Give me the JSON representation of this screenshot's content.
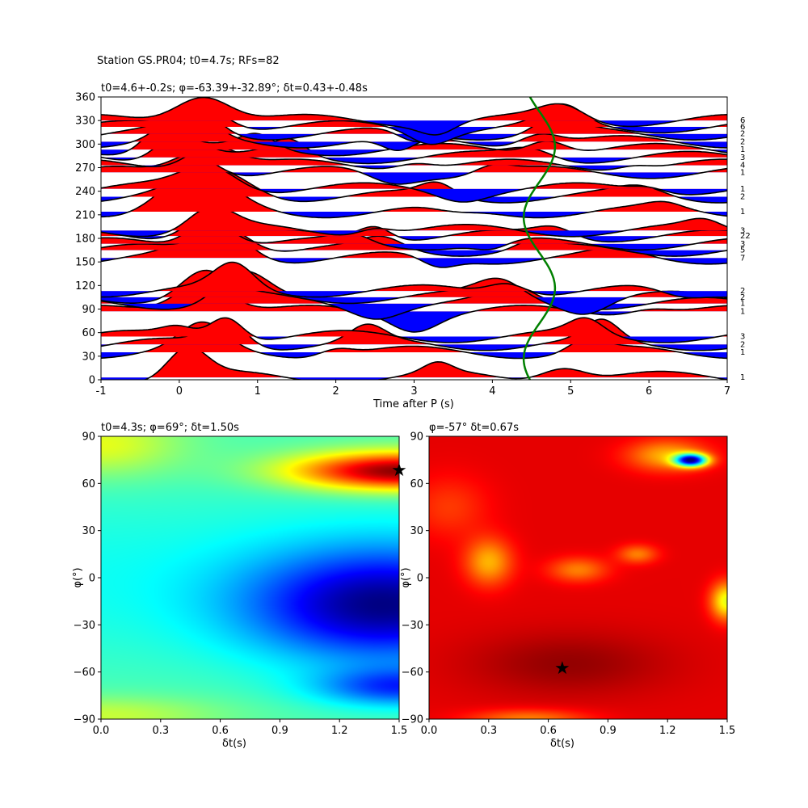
{
  "suptitle": "Station GS.PR04; t0=4.7s; RFs=82",
  "chart_data": [
    {
      "type": "line",
      "title": "t0=4.6+-0.2s; φ=-63.39+-32.89°; δt=0.43+-0.48s",
      "xlabel": "Time after P (s)",
      "ylabel": "",
      "xlim": [
        -1,
        7
      ],
      "ylim": [
        0,
        360
      ],
      "x_ticks": [
        "-1",
        "0",
        "1",
        "2",
        "3",
        "4",
        "5",
        "6",
        "7"
      ],
      "y_ticks": [
        "0",
        "30",
        "60",
        "90",
        "120",
        "150",
        "180",
        "210",
        "240",
        "270",
        "300",
        "330",
        "360"
      ],
      "positive_fill_color": "#ff0000",
      "negative_fill_color": "#0000ff",
      "trace_color": "#000000",
      "t0_curve_color": "#008000",
      "traces": [
        {
          "baz": 3,
          "count": "1",
          "peaks": [
            [
              0.1,
              1.2,
              0.35
            ],
            [
              3.3,
              0.4,
              0.25
            ],
            [
              4.9,
              0.6,
              0.4
            ]
          ]
        },
        {
          "baz": 35,
          "count": "1",
          "peaks": [
            [
              0.3,
              1.0,
              0.4
            ],
            [
              2.0,
              0.3,
              0.3
            ],
            [
              5.2,
              0.5,
              0.3
            ]
          ]
        },
        {
          "baz": 45,
          "count": "2",
          "peaks": [
            [
              0.6,
              1.1,
              0.35
            ],
            [
              2.4,
              0.6,
              0.3
            ],
            [
              5.4,
              0.8,
              0.3
            ]
          ]
        },
        {
          "baz": 55,
          "count": "3",
          "peaks": [
            [
              0.0,
              0.4,
              0.3
            ],
            [
              0.6,
              1.0,
              0.3
            ],
            [
              5.2,
              0.6,
              0.3
            ]
          ]
        },
        {
          "baz": 87,
          "count": "1",
          "peaks": [
            [
              0.3,
              1.4,
              0.5
            ],
            [
              3.0,
              -0.6,
              0.4
            ],
            [
              6.0,
              0.3,
              0.4
            ]
          ]
        },
        {
          "baz": 97,
          "count": "1",
          "peaks": [
            [
              0.8,
              1.2,
              0.45
            ],
            [
              2.5,
              -0.4,
              0.4
            ],
            [
              4.3,
              0.5,
              0.4
            ]
          ]
        },
        {
          "baz": 105,
          "count": "2",
          "peaks": [
            [
              0.3,
              1.0,
              0.4
            ],
            [
              4.1,
              0.7,
              0.4
            ],
            [
              5.2,
              -0.5,
              0.4
            ]
          ]
        },
        {
          "baz": 113,
          "count": "2",
          "peaks": [
            [
              0.7,
              1.0,
              0.35
            ],
            [
              4.2,
              0.5,
              0.35
            ],
            [
              6.4,
              -0.3,
              0.4
            ]
          ]
        },
        {
          "baz": 155,
          "count": "7",
          "peaks": [
            [
              0.5,
              1.3,
              0.5
            ],
            [
              3.3,
              -0.4,
              0.3
            ],
            [
              5.6,
              0.2,
              0.4
            ]
          ]
        },
        {
          "baz": 165,
          "count": "5",
          "peaks": [
            [
              0.6,
              1.1,
              0.45
            ],
            [
              2.6,
              0.4,
              0.35
            ],
            [
              4.5,
              0.3,
              0.3
            ]
          ]
        },
        {
          "baz": 173,
          "count": "3",
          "peaks": [
            [
              0.4,
              1.2,
              0.4
            ],
            [
              2.2,
              0.3,
              0.3
            ],
            [
              4.0,
              -0.3,
              0.3
            ]
          ]
        },
        {
          "baz": 183,
          "count": "22",
          "peaks": [
            [
              0.4,
              1.1,
              0.45
            ],
            [
              2.5,
              0.6,
              0.3
            ],
            [
              4.8,
              0.4,
              0.35
            ]
          ]
        },
        {
          "baz": 190,
          "count": "3",
          "peaks": [
            [
              0.4,
              0.9,
              0.4
            ],
            [
              2.5,
              0.3,
              0.3
            ],
            [
              6.7,
              0.3,
              0.3
            ]
          ]
        },
        {
          "baz": 214,
          "count": "1",
          "peaks": [
            [
              0.2,
              1.5,
              0.6
            ],
            [
              3.5,
              -0.2,
              0.4
            ],
            [
              6.2,
              0.2,
              0.3
            ]
          ]
        },
        {
          "baz": 233,
          "count": "2",
          "peaks": [
            [
              0.5,
              1.0,
              0.6
            ],
            [
              3.3,
              0.5,
              0.3
            ],
            [
              5.9,
              0.3,
              0.4
            ]
          ]
        },
        {
          "baz": 243,
          "count": "1",
          "peaks": [
            [
              0.4,
              1.0,
              0.5
            ],
            [
              3.6,
              -0.3,
              0.4
            ],
            [
              6.0,
              0.2,
              0.3
            ]
          ]
        },
        {
          "baz": 264,
          "count": "1",
          "peaks": [
            [
              0.2,
              0.9,
              0.4
            ],
            [
              2.7,
              -0.4,
              0.4
            ],
            [
              4.0,
              0.3,
              0.3
            ]
          ]
        },
        {
          "baz": 273,
          "count": "4",
          "peaks": [
            [
              0.4,
              1.0,
              0.45
            ],
            [
              3.0,
              0.3,
              0.35
            ],
            [
              5.8,
              0.2,
              0.3
            ]
          ]
        },
        {
          "baz": 283,
          "count": "3",
          "peaks": [
            [
              0.0,
              1.2,
              0.4
            ],
            [
              1.4,
              0.6,
              0.3
            ],
            [
              4.5,
              0.4,
              0.4
            ]
          ]
        },
        {
          "baz": 293,
          "count": "1",
          "peaks": [
            [
              -0.2,
              1.1,
              0.35
            ],
            [
              1.0,
              0.5,
              0.3
            ],
            [
              4.7,
              0.6,
              0.35
            ]
          ]
        },
        {
          "baz": 303,
          "count": "2",
          "peaks": [
            [
              0.1,
              1.2,
              0.4
            ],
            [
              2.8,
              -0.6,
              0.3
            ],
            [
              4.6,
              0.5,
              0.35
            ]
          ]
        },
        {
          "baz": 313,
          "count": "2",
          "peaks": [
            [
              0.2,
              1.0,
              0.4
            ],
            [
              3.0,
              -0.4,
              0.3
            ],
            [
              4.8,
              0.6,
              0.35
            ]
          ]
        },
        {
          "baz": 322,
          "count": "6",
          "peaks": [
            [
              0.3,
              1.0,
              0.45
            ],
            [
              3.2,
              -0.5,
              0.35
            ],
            [
              4.9,
              0.7,
              0.35
            ]
          ]
        },
        {
          "baz": 330,
          "count": "6",
          "peaks": [
            [
              0.3,
              1.2,
              0.5
            ],
            [
              3.3,
              -0.4,
              0.3
            ],
            [
              4.9,
              0.6,
              0.4
            ]
          ]
        }
      ],
      "t0_curve": {
        "mean": 4.6,
        "amplitude": 0.2,
        "phase_deg": -63.39
      }
    },
    {
      "type": "heatmap",
      "title": "t0=4.3s; φ=69°; δt=1.50s",
      "xlabel": "δt(s)",
      "ylabel": "φ(°)",
      "xlim": [
        0,
        1.5
      ],
      "ylim": [
        -90,
        90
      ],
      "x_ticks": [
        "0.0",
        "0.3",
        "0.6",
        "0.9",
        "1.2",
        "1.5"
      ],
      "y_ticks": [
        "−90",
        "−60",
        "−30",
        "0",
        "30",
        "60",
        "90"
      ],
      "colormap": "jet",
      "best": {
        "dt": 1.5,
        "phi": 69
      }
    },
    {
      "type": "heatmap",
      "title": "φ=-57° δt=0.67s",
      "xlabel": "δt(s)",
      "ylabel": "φ(°)",
      "xlim": [
        0,
        1.5
      ],
      "ylim": [
        -90,
        90
      ],
      "x_ticks": [
        "0.0",
        "0.3",
        "0.6",
        "0.9",
        "1.2",
        "1.5"
      ],
      "y_ticks": [
        "−90",
        "−60",
        "−30",
        "0",
        "30",
        "60",
        "90"
      ],
      "colormap": "jet",
      "best": {
        "dt": 0.67,
        "phi": -57
      }
    }
  ]
}
